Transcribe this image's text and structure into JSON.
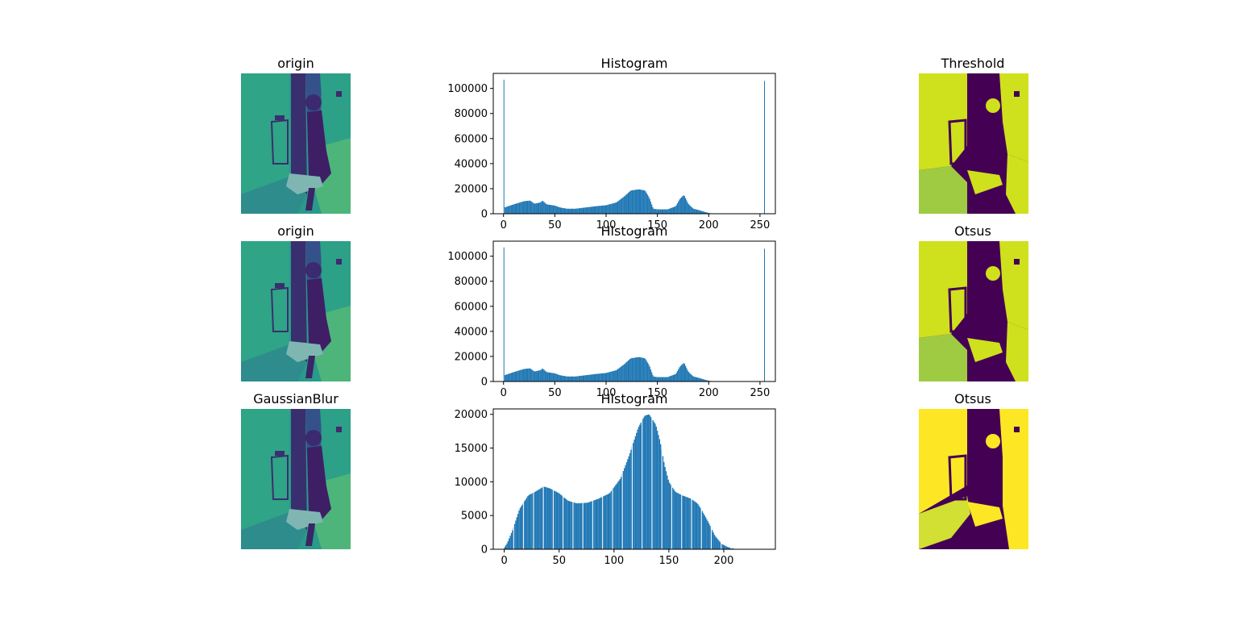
{
  "figure": {
    "rows": [
      {
        "left_title": "origin",
        "hist_title": "Histogram",
        "right_title": "Threshold"
      },
      {
        "left_title": "origin",
        "hist_title": "Histogram",
        "right_title": "Otsus"
      },
      {
        "left_title": "GaussianBlur",
        "hist_title": "Histogram",
        "right_title": "Otsus"
      }
    ],
    "colors": {
      "bar": "#1f77b4",
      "viridis_dark": "#440154",
      "viridis_teal": "#2a9a8a",
      "viridis_green": "#5ec962",
      "viridis_yellow": "#fde725",
      "lime_yellow": "#d4e31b"
    }
  },
  "chart_data": [
    {
      "type": "bar",
      "title": "Histogram",
      "xlabel": "",
      "ylabel": "",
      "xlim": [
        -10,
        265
      ],
      "ylim": [
        0,
        112000
      ],
      "xticks": [
        "0",
        "50",
        "100",
        "150",
        "200",
        "250"
      ],
      "yticks": [
        "0",
        "20000",
        "40000",
        "60000",
        "80000",
        "100000"
      ],
      "spikes": [
        {
          "x": 0,
          "value": 107000
        },
        {
          "x": 254,
          "value": 106000
        }
      ],
      "profile": [
        [
          1,
          5000
        ],
        [
          10,
          7500
        ],
        [
          20,
          10000
        ],
        [
          26,
          10500
        ],
        [
          30,
          8000
        ],
        [
          36,
          9000
        ],
        [
          38,
          10500
        ],
        [
          42,
          7500
        ],
        [
          50,
          6500
        ],
        [
          55,
          5000
        ],
        [
          62,
          4000
        ],
        [
          70,
          4000
        ],
        [
          80,
          5000
        ],
        [
          90,
          6000
        ],
        [
          100,
          6800
        ],
        [
          110,
          9000
        ],
        [
          118,
          14000
        ],
        [
          124,
          18500
        ],
        [
          132,
          19500
        ],
        [
          138,
          18500
        ],
        [
          142,
          13000
        ],
        [
          146,
          4000
        ],
        [
          150,
          3500
        ],
        [
          160,
          3500
        ],
        [
          168,
          6000
        ],
        [
          172,
          12000
        ],
        [
          176,
          15000
        ],
        [
          180,
          8000
        ],
        [
          185,
          4000
        ],
        [
          190,
          3000
        ],
        [
          196,
          1500
        ],
        [
          200,
          600
        ],
        [
          205,
          100
        ],
        [
          210,
          0
        ]
      ]
    },
    {
      "type": "bar",
      "title": "Histogram",
      "xlabel": "",
      "ylabel": "",
      "xlim": [
        -10,
        265
      ],
      "ylim": [
        0,
        112000
      ],
      "xticks": [
        "0",
        "50",
        "100",
        "150",
        "200",
        "250"
      ],
      "yticks": [
        "0",
        "20000",
        "40000",
        "60000",
        "80000",
        "100000"
      ],
      "spikes": [
        {
          "x": 0,
          "value": 107000
        },
        {
          "x": 254,
          "value": 106000
        }
      ],
      "profile": [
        [
          1,
          5000
        ],
        [
          10,
          7500
        ],
        [
          20,
          10000
        ],
        [
          26,
          10500
        ],
        [
          30,
          8000
        ],
        [
          36,
          9000
        ],
        [
          38,
          10500
        ],
        [
          42,
          7500
        ],
        [
          50,
          6500
        ],
        [
          55,
          5000
        ],
        [
          62,
          4000
        ],
        [
          70,
          4000
        ],
        [
          80,
          5000
        ],
        [
          90,
          6000
        ],
        [
          100,
          6800
        ],
        [
          110,
          9000
        ],
        [
          118,
          14000
        ],
        [
          124,
          18500
        ],
        [
          132,
          19500
        ],
        [
          138,
          18500
        ],
        [
          142,
          13000
        ],
        [
          146,
          4000
        ],
        [
          150,
          3500
        ],
        [
          160,
          3500
        ],
        [
          168,
          6000
        ],
        [
          172,
          12000
        ],
        [
          176,
          15000
        ],
        [
          180,
          8000
        ],
        [
          185,
          4000
        ],
        [
          190,
          3000
        ],
        [
          196,
          1500
        ],
        [
          200,
          600
        ],
        [
          205,
          100
        ],
        [
          210,
          0
        ]
      ]
    },
    {
      "type": "bar",
      "title": "Histogram",
      "xlabel": "",
      "ylabel": "",
      "xlim": [
        -10,
        247
      ],
      "ylim": [
        0,
        20800
      ],
      "xticks": [
        "0",
        "50",
        "100",
        "150",
        "200"
      ],
      "yticks": [
        "0",
        "5000",
        "10000",
        "15000",
        "20000"
      ],
      "spikes": [],
      "profile": [
        [
          0,
          200
        ],
        [
          3,
          1000
        ],
        [
          8,
          3000
        ],
        [
          14,
          6000
        ],
        [
          22,
          8000
        ],
        [
          28,
          8500
        ],
        [
          36,
          9300
        ],
        [
          42,
          9000
        ],
        [
          50,
          8300
        ],
        [
          58,
          7200
        ],
        [
          66,
          6800
        ],
        [
          76,
          6900
        ],
        [
          86,
          7500
        ],
        [
          96,
          8300
        ],
        [
          106,
          10500
        ],
        [
          114,
          14000
        ],
        [
          122,
          18000
        ],
        [
          128,
          19800
        ],
        [
          132,
          20000
        ],
        [
          138,
          18500
        ],
        [
          142,
          16000
        ],
        [
          146,
          12500
        ],
        [
          150,
          10000
        ],
        [
          156,
          8500
        ],
        [
          162,
          8000
        ],
        [
          170,
          7500
        ],
        [
          176,
          6800
        ],
        [
          180,
          5800
        ],
        [
          186,
          4000
        ],
        [
          192,
          2000
        ],
        [
          198,
          800
        ],
        [
          204,
          300
        ],
        [
          210,
          50
        ],
        [
          214,
          0
        ]
      ]
    }
  ]
}
